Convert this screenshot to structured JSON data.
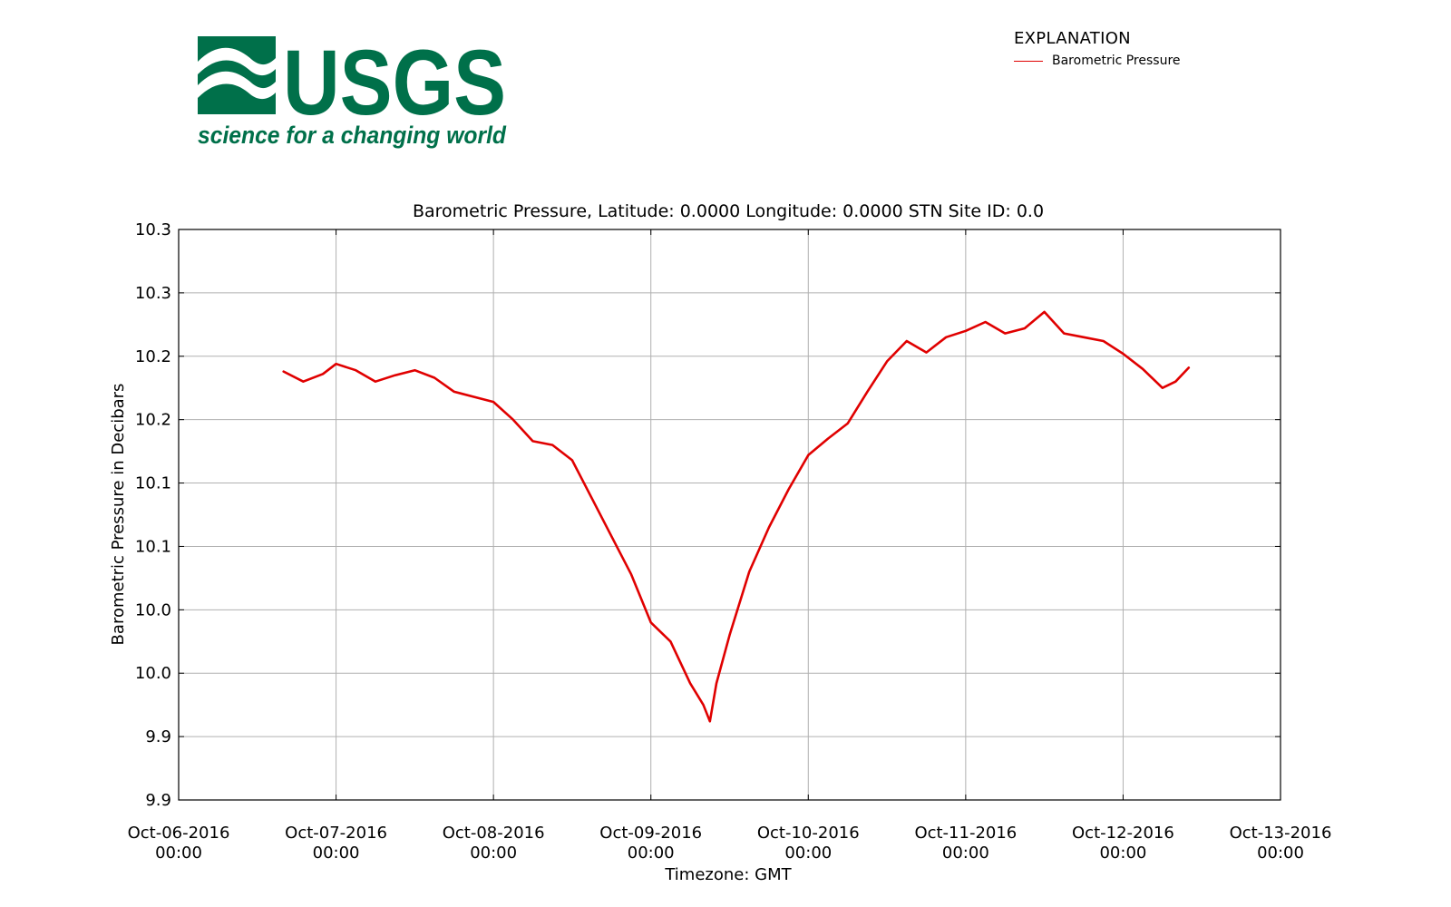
{
  "logo": {
    "wordmark": "USGS",
    "tagline": "science for a changing world",
    "color": "#00704a"
  },
  "legend": {
    "title": "EXPLANATION",
    "entries": [
      {
        "label": "Barometric Pressure",
        "color": "#e00000"
      }
    ]
  },
  "chart_data": {
    "type": "line",
    "title": "Barometric Pressure, Latitude: 0.0000 Longitude: 0.0000 STN Site ID: 0.0",
    "xlabel": "Timezone: GMT",
    "ylabel": "Barometric Pressure in Decibars",
    "grid": true,
    "legend_position": "top-right",
    "x_tick_labels": [
      [
        "Oct-06-2016",
        "00:00"
      ],
      [
        "Oct-07-2016",
        "00:00"
      ],
      [
        "Oct-08-2016",
        "00:00"
      ],
      [
        "Oct-09-2016",
        "00:00"
      ],
      [
        "Oct-10-2016",
        "00:00"
      ],
      [
        "Oct-11-2016",
        "00:00"
      ],
      [
        "Oct-12-2016",
        "00:00"
      ],
      [
        "Oct-13-2016",
        "00:00"
      ]
    ],
    "y_tick_labels": [
      "9.9",
      "9.9",
      "10.0",
      "10.0",
      "10.1",
      "10.1",
      "10.2",
      "10.2",
      "10.3",
      "10.3"
    ],
    "xlim": [
      "2016-10-06 00:00",
      "2016-10-13 00:00"
    ],
    "ylim": [
      9.9,
      10.35
    ],
    "series": [
      {
        "name": "Barometric Pressure",
        "color": "#e00000",
        "x": [
          "2016-10-06 16:00",
          "2016-10-06 19:00",
          "2016-10-06 22:00",
          "2016-10-07 00:00",
          "2016-10-07 03:00",
          "2016-10-07 06:00",
          "2016-10-07 09:00",
          "2016-10-07 12:00",
          "2016-10-07 15:00",
          "2016-10-07 18:00",
          "2016-10-07 21:00",
          "2016-10-08 00:00",
          "2016-10-08 03:00",
          "2016-10-08 06:00",
          "2016-10-08 09:00",
          "2016-10-08 12:00",
          "2016-10-08 15:00",
          "2016-10-08 18:00",
          "2016-10-08 21:00",
          "2016-10-09 00:00",
          "2016-10-09 03:00",
          "2016-10-09 06:00",
          "2016-10-09 08:00",
          "2016-10-09 09:00",
          "2016-10-09 10:00",
          "2016-10-09 12:00",
          "2016-10-09 15:00",
          "2016-10-09 18:00",
          "2016-10-09 21:00",
          "2016-10-10 00:00",
          "2016-10-10 03:00",
          "2016-10-10 06:00",
          "2016-10-10 09:00",
          "2016-10-10 12:00",
          "2016-10-10 15:00",
          "2016-10-10 18:00",
          "2016-10-10 21:00",
          "2016-10-11 00:00",
          "2016-10-11 03:00",
          "2016-10-11 06:00",
          "2016-10-11 09:00",
          "2016-10-11 12:00",
          "2016-10-11 15:00",
          "2016-10-11 18:00",
          "2016-10-11 21:00",
          "2016-10-12 00:00",
          "2016-10-12 03:00",
          "2016-10-12 06:00",
          "2016-10-12 08:00",
          "2016-10-12 10:00"
        ],
        "y": [
          10.238,
          10.23,
          10.236,
          10.244,
          10.239,
          10.23,
          10.235,
          10.239,
          10.233,
          10.222,
          10.218,
          10.214,
          10.2,
          10.183,
          10.18,
          10.168,
          10.138,
          10.108,
          10.078,
          10.04,
          10.025,
          9.992,
          9.975,
          9.962,
          9.992,
          10.03,
          10.08,
          10.115,
          10.145,
          10.172,
          10.185,
          10.197,
          10.222,
          10.246,
          10.262,
          10.253,
          10.265,
          10.27,
          10.277,
          10.268,
          10.272,
          10.285,
          10.268,
          10.265,
          10.262,
          10.252,
          10.24,
          10.225,
          10.23,
          10.241
        ]
      }
    ]
  }
}
